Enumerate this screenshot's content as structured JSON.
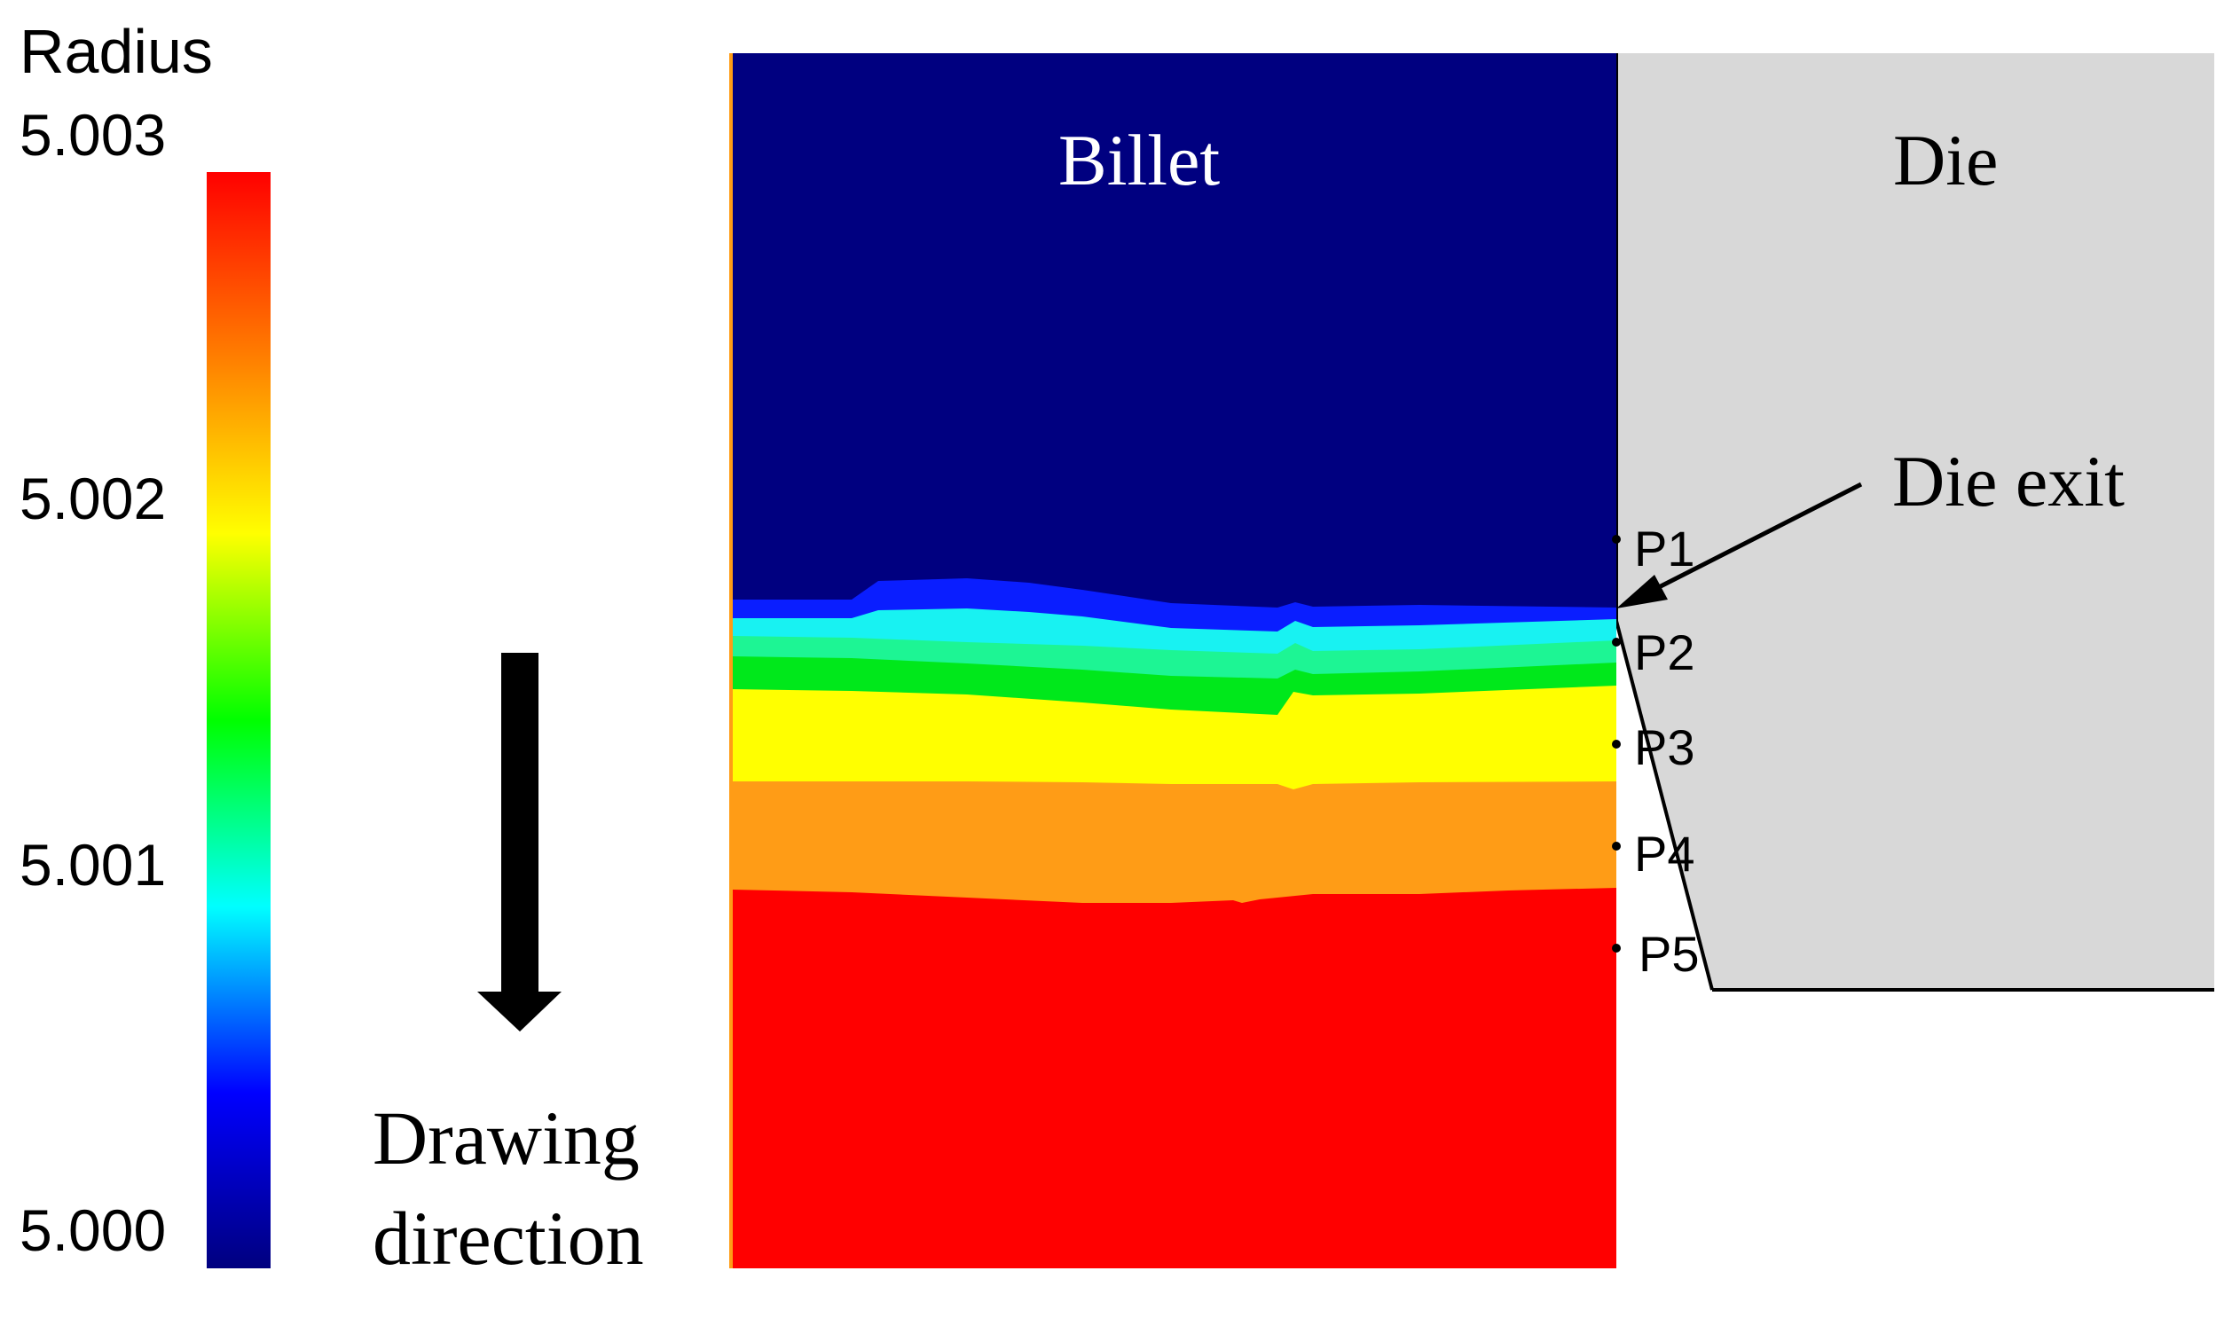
{
  "colorbar": {
    "title": "Radius",
    "tick_labels": [
      "5.003",
      "5.002",
      "5.001",
      "5.000"
    ],
    "gradient_colors": [
      "#ff0000",
      "#ff7f00",
      "#ffff00",
      "#00ff00",
      "#00ffff",
      "#0000ff",
      "#00007f"
    ]
  },
  "drawing_direction": {
    "line1": "Drawing",
    "line2": "direction"
  },
  "labels": {
    "billet": "Billet",
    "die": "Die",
    "die_exit": "Die exit"
  },
  "points": [
    "P1",
    "P2",
    "P3",
    "P4",
    "P5"
  ],
  "colors": {
    "billet_top": "#000080",
    "blue_band": "#0a1eff",
    "cyan_band": "#18f2f2",
    "spring_band": "#1df594",
    "green_band": "#00e81b",
    "yellow_band": "#ffff00",
    "orange_band": "#ff9c16",
    "red_band": "#ff0000",
    "die": "#d8d8d8",
    "ink": "#000000"
  }
}
